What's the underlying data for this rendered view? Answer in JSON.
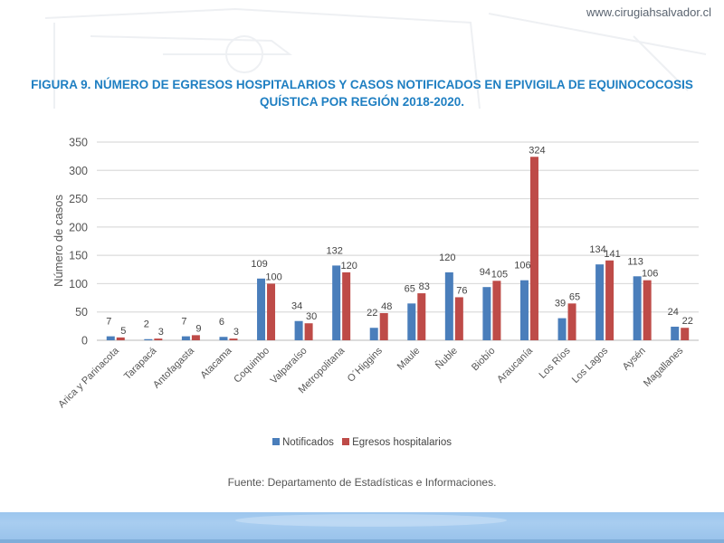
{
  "header": {
    "site_url": "www.cirugiahsalvador.cl",
    "title_line1": "FIGURA 9. NÚMERO DE EGRESOS HOSPITALARIOS Y CASOS NOTIFICADOS EN EPIVIGILA DE EQUINOCOCOSIS",
    "title_line2": "QUÍSTICA POR REGIÓN 2018-2020."
  },
  "source": "Fuente: Departamento de Estadísticas e Informaciones.",
  "colors": {
    "notificados": "#4a7ebb",
    "egresos": "#be4b48",
    "title": "#1f7fc2",
    "footer": "#9cc6ee"
  },
  "chart_data": {
    "type": "bar",
    "title": "FIGURA 9. NÚMERO DE EGRESOS HOSPITALARIOS Y CASOS NOTIFICADOS EN EPIVIGILA DE EQUINOCOCOSIS QUÍSTICA POR REGIÓN 2018-2020.",
    "xlabel": "",
    "ylabel": "Número de casos",
    "ylim": [
      0,
      350
    ],
    "yticks": [
      0,
      50,
      100,
      150,
      200,
      250,
      300,
      350
    ],
    "grid": true,
    "legend_position": "bottom",
    "categories": [
      "Arica y Parinacota",
      "Tarapacá",
      "Antofagasta",
      "Atacama",
      "Coquimbo",
      "Valparaíso",
      "Metropolitana",
      "O´Higgins",
      "Maule",
      "Ñuble",
      "Biobío",
      "Araucanía",
      "Los Ríos",
      "Los Lagos",
      "Aysén",
      "Magallanes"
    ],
    "series": [
      {
        "name": "Notificados",
        "values": [
          7,
          2,
          7,
          6,
          109,
          34,
          132,
          22,
          65,
          120,
          94,
          106,
          39,
          134,
          113,
          24
        ]
      },
      {
        "name": "Egresos hospitalarios",
        "values": [
          5,
          3,
          9,
          3,
          100,
          30,
          120,
          48,
          83,
          76,
          105,
          324,
          65,
          141,
          106,
          22
        ]
      }
    ]
  }
}
